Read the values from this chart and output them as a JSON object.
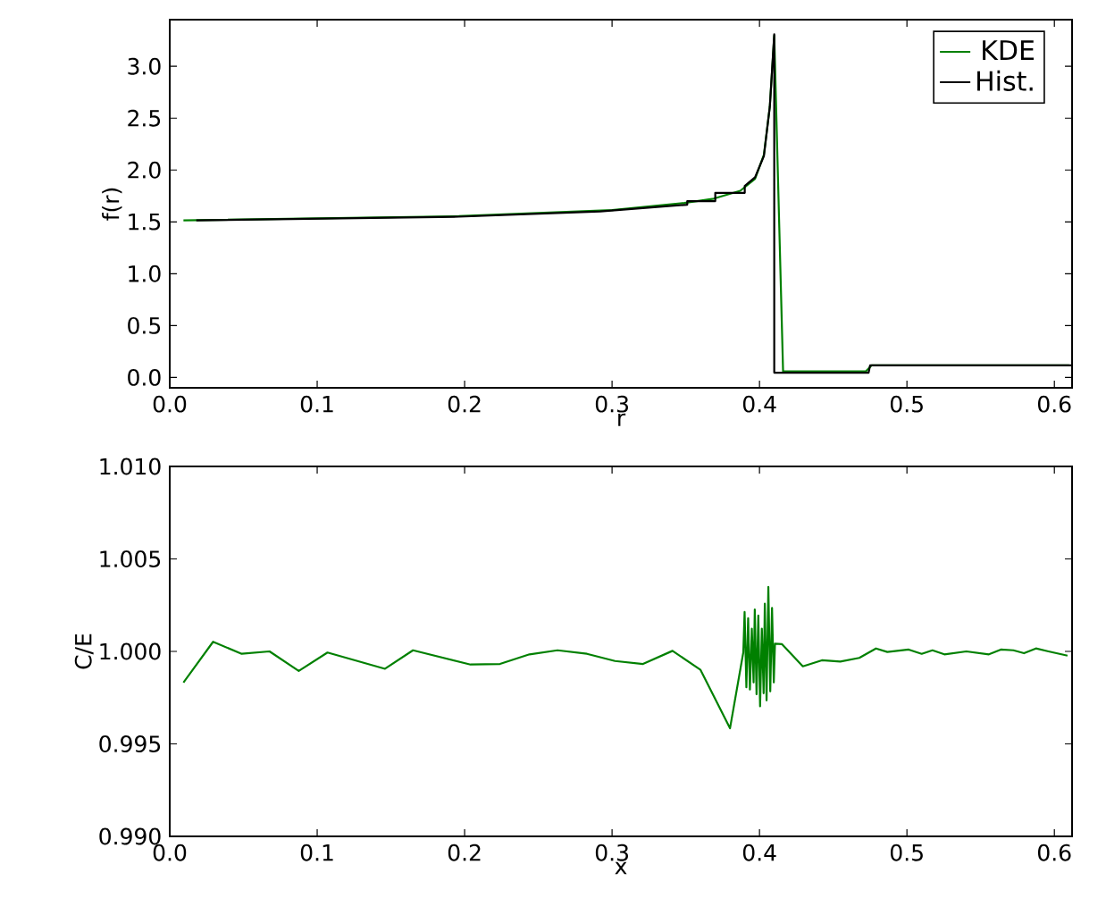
{
  "chart_data": [
    {
      "type": "line",
      "xlabel": "r",
      "ylabel": "f(r)",
      "xlim": [
        0,
        0.612
      ],
      "ylim": [
        -0.1,
        3.45
      ],
      "xticks": [
        {
          "value": 0,
          "label": "0.0"
        },
        {
          "value": 0.1,
          "label": "0.1"
        },
        {
          "value": 0.2,
          "label": "0.2"
        },
        {
          "value": 0.3,
          "label": "0.3"
        },
        {
          "value": 0.4,
          "label": "0.4"
        },
        {
          "value": 0.5,
          "label": "0.5"
        },
        {
          "value": 0.6,
          "label": "0.6"
        }
      ],
      "yticks": [
        {
          "value": 0,
          "label": "0.0"
        },
        {
          "value": 0.5,
          "label": "0.5"
        },
        {
          "value": 1,
          "label": "1.0"
        },
        {
          "value": 1.5,
          "label": "1.5"
        },
        {
          "value": 2,
          "label": "2.0"
        },
        {
          "value": 2.5,
          "label": "2.5"
        },
        {
          "value": 3,
          "label": "3.0"
        }
      ],
      "legend": "top right",
      "series": [
        {
          "name": "KDE",
          "color": "#008000",
          "x": [
            0.0093,
            0.196,
            0.3,
            0.349,
            0.369,
            0.387,
            0.397,
            0.403,
            0.407,
            0.41,
            0.416,
            0.472,
            0.476,
            0.61
          ],
          "values": [
            1.515,
            1.555,
            1.613,
            1.683,
            1.724,
            1.8,
            1.915,
            2.147,
            2.612,
            3.297,
            0.058,
            0.058,
            0.116,
            0.116
          ]
        },
        {
          "name": "Hist.",
          "color": "#000000",
          "x": [
            0.018,
            0.196,
            0.292,
            0.351,
            0.351,
            0.37,
            0.37,
            0.39,
            0.39,
            0.397,
            0.403,
            0.407,
            0.41,
            0.41,
            0.474,
            0.475,
            0.612
          ],
          "values": [
            1.515,
            1.55,
            1.6,
            1.666,
            1.7,
            1.7,
            1.78,
            1.78,
            1.846,
            1.93,
            2.136,
            2.61,
            3.31,
            0.046,
            0.046,
            0.116,
            0.116
          ]
        }
      ]
    },
    {
      "type": "line",
      "xlabel": "x",
      "ylabel": "C/E",
      "xlim": [
        0,
        0.612
      ],
      "ylim": [
        0.99,
        1.01
      ],
      "xticks": [
        {
          "value": 0,
          "label": "0.0"
        },
        {
          "value": 0.1,
          "label": "0.1"
        },
        {
          "value": 0.2,
          "label": "0.2"
        },
        {
          "value": 0.3,
          "label": "0.3"
        },
        {
          "value": 0.4,
          "label": "0.4"
        },
        {
          "value": 0.5,
          "label": "0.5"
        },
        {
          "value": 0.6,
          "label": "0.6"
        }
      ],
      "yticks": [
        {
          "value": 0.99,
          "label": "0.990"
        },
        {
          "value": 0.995,
          "label": "0.995"
        },
        {
          "value": 1.0,
          "label": "1.000"
        },
        {
          "value": 1.005,
          "label": "1.005"
        },
        {
          "value": 1.01,
          "label": "1.010"
        }
      ],
      "series": [
        {
          "color": "#008000",
          "x": [
            0.0093,
            0.0294,
            0.0488,
            0.0677,
            0.0875,
            0.107,
            0.146,
            0.165,
            0.204,
            0.224,
            0.244,
            0.263,
            0.283,
            0.302,
            0.321,
            0.341,
            0.36,
            0.38,
            0.389,
            0.3899,
            0.3911,
            0.3923,
            0.3935,
            0.3948,
            0.396,
            0.3968,
            0.398,
            0.3992,
            0.4004,
            0.4016,
            0.4028,
            0.4036,
            0.4048,
            0.406,
            0.4073,
            0.4085,
            0.4097,
            0.4105,
            0.4153,
            0.4294,
            0.4423,
            0.4548,
            0.4677,
            0.479,
            0.4867,
            0.5012,
            0.51,
            0.5173,
            0.5254,
            0.5403,
            0.5556,
            0.5637,
            0.5722,
            0.5794,
            0.5875,
            0.596,
            0.6089
          ],
          "values": [
            0.99832,
            1.00052,
            0.99987,
            1.0,
            0.99894,
            0.99994,
            0.99906,
            1.00006,
            0.99929,
            0.99932,
            0.99984,
            1.00006,
            0.99987,
            0.99948,
            0.99932,
            1.00003,
            0.999,
            0.99584,
            0.99994,
            1.00213,
            0.99806,
            1.0018,
            0.99794,
            1.00123,
            0.99832,
            1.00226,
            0.99768,
            1.00194,
            0.99703,
            1.00123,
            0.99774,
            1.00258,
            0.99735,
            1.00348,
            0.99784,
            1.00235,
            0.99832,
            1.00042,
            1.00039,
            0.99919,
            0.99952,
            0.99945,
            0.99965,
            1.00016,
            0.99997,
            1.0001,
            0.99987,
            1.00006,
            0.99984,
            1.0,
            0.99984,
            1.0001,
            1.00006,
            0.9999,
            1.00016,
            1.0,
            0.99977
          ]
        }
      ]
    }
  ]
}
